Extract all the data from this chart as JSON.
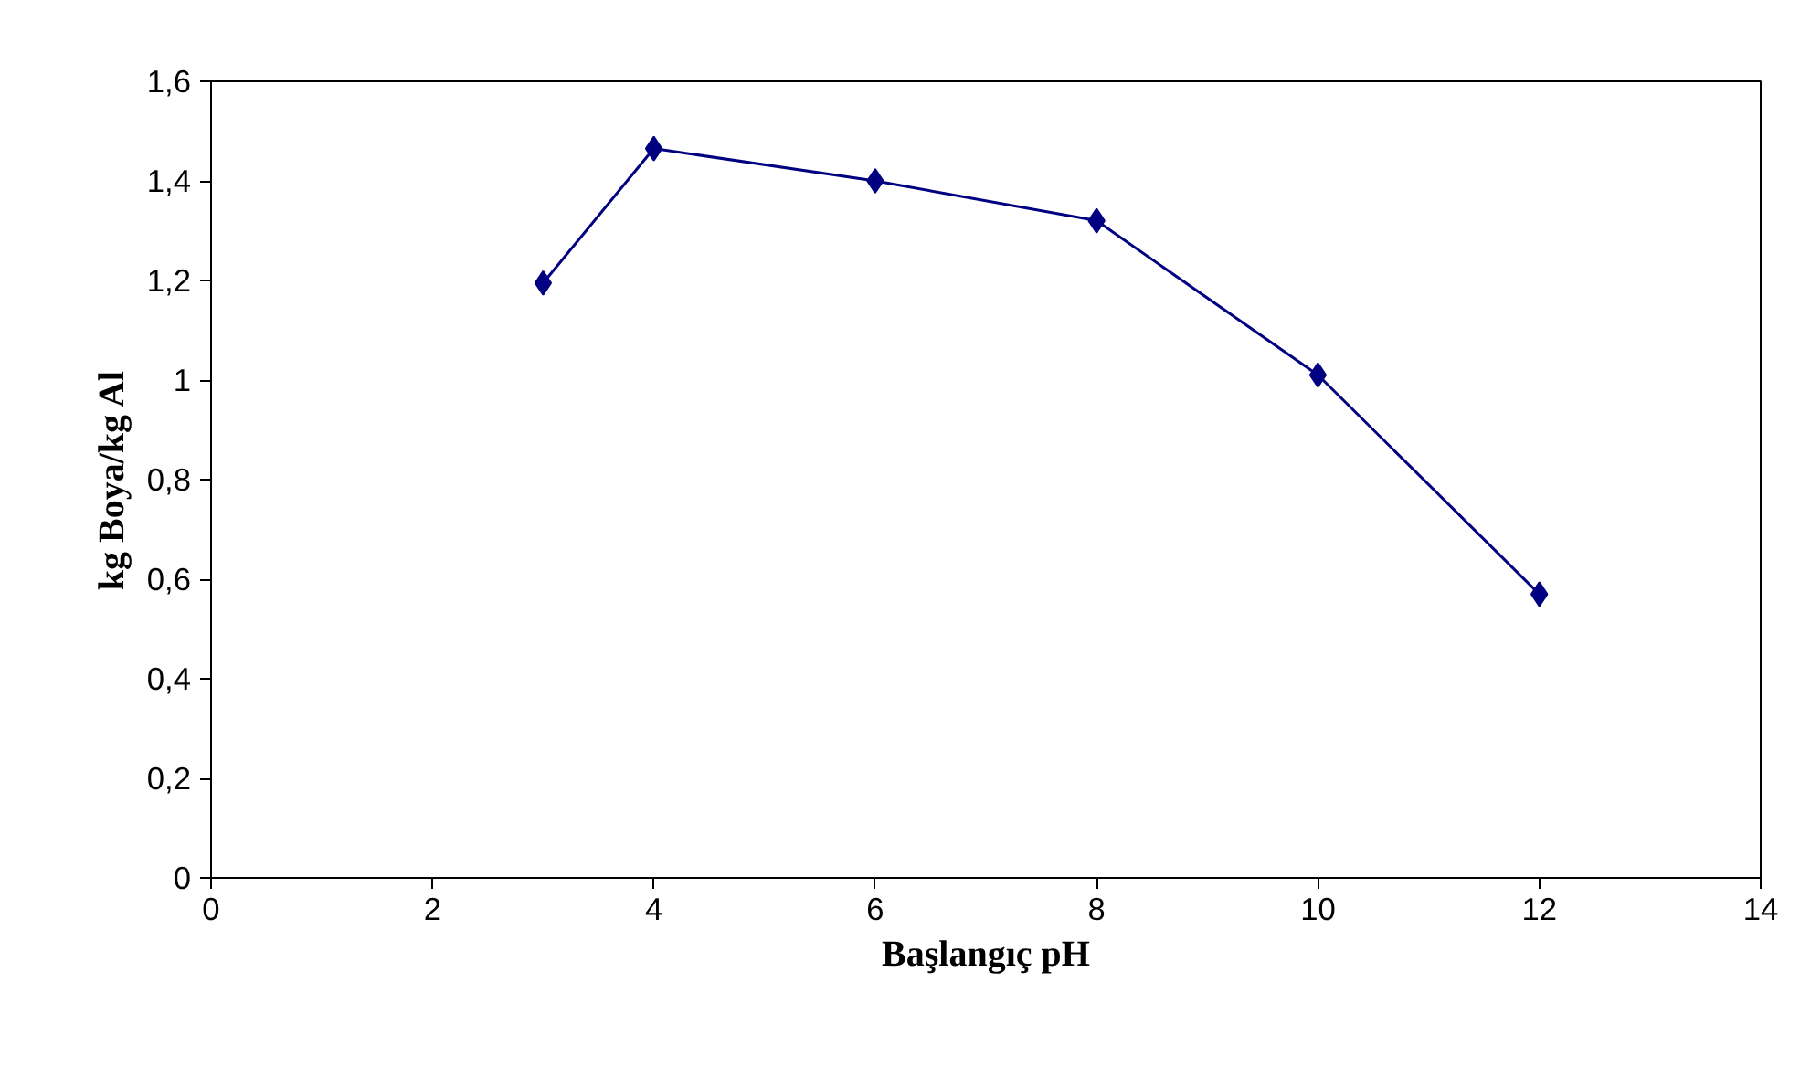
{
  "chart_data": {
    "type": "line",
    "xlabel": "Başlangıç pH",
    "ylabel": "kg Boya/kg Al",
    "x": [
      3,
      4,
      6,
      8,
      10,
      12
    ],
    "series": [
      {
        "color": "#000080",
        "values": [
          1.195,
          1.465,
          1.4,
          1.32,
          1.01,
          0.57
        ]
      }
    ],
    "xlim": [
      0,
      14
    ],
    "xticks": [
      0,
      2,
      4,
      6,
      8,
      10,
      12,
      14
    ],
    "ylim": [
      0,
      1.6
    ],
    "yticks": [
      0,
      {
        "value": 0.2,
        "label": "0,2"
      },
      {
        "value": 0.4,
        "label": "0,4"
      },
      {
        "value": 0.6,
        "label": "0,6"
      },
      {
        "value": 0.8,
        "label": "0,8"
      },
      1,
      {
        "value": 1.2,
        "label": "1,2"
      },
      {
        "value": 1.4,
        "label": "1,4"
      },
      {
        "value": 1.6,
        "label": "1,6"
      }
    ],
    "grid": false,
    "marker": "diamond",
    "line_style": "solid"
  }
}
